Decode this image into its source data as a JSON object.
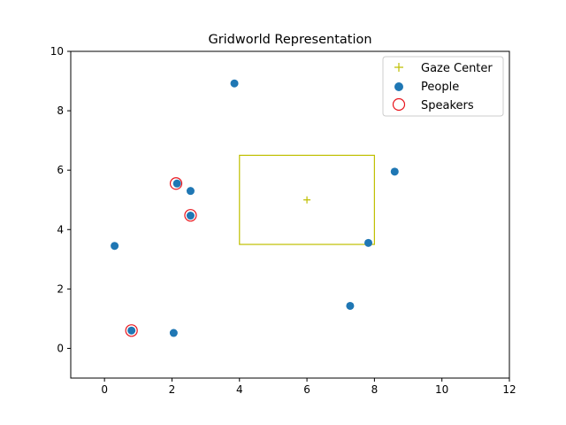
{
  "chart_data": {
    "type": "scatter",
    "title": "Gridworld Representation",
    "xlabel": "",
    "ylabel": "",
    "xlim": [
      -1,
      12
    ],
    "ylim": [
      -1,
      10
    ],
    "x_ticks": [
      0,
      2,
      4,
      6,
      8,
      10,
      12
    ],
    "y_ticks": [
      0,
      2,
      4,
      6,
      8,
      10
    ],
    "grid": false,
    "legend": {
      "placement": "top-right",
      "entries": [
        "Gaze Center",
        "People",
        "Speakers"
      ]
    },
    "gaze_center": {
      "name": "Gaze Center",
      "x": 6,
      "y": 5,
      "marker": "+",
      "color": "#bfbf00"
    },
    "gaze_box": {
      "x_min": 4,
      "x_max": 8,
      "y_min": 3.5,
      "y_max": 6.5,
      "color": "#bfbf00"
    },
    "people": {
      "name": "People",
      "color": "#1f77b4",
      "points": [
        {
          "x": 3.85,
          "y": 8.92
        },
        {
          "x": 2.15,
          "y": 5.55
        },
        {
          "x": 2.55,
          "y": 5.3
        },
        {
          "x": 2.55,
          "y": 4.47
        },
        {
          "x": 0.3,
          "y": 3.45
        },
        {
          "x": 8.6,
          "y": 5.95
        },
        {
          "x": 7.82,
          "y": 3.55
        },
        {
          "x": 7.28,
          "y": 1.43
        },
        {
          "x": 0.8,
          "y": 0.6
        },
        {
          "x": 2.05,
          "y": 0.52
        }
      ]
    },
    "speakers": {
      "name": "Speakers",
      "color": "#e8141c",
      "points": [
        {
          "x": 2.12,
          "y": 5.55
        },
        {
          "x": 2.55,
          "y": 4.48
        },
        {
          "x": 0.8,
          "y": 0.6
        }
      ]
    }
  }
}
